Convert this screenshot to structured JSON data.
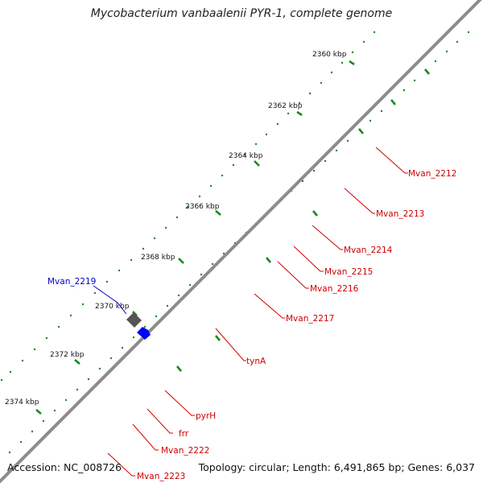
{
  "title": "Mycobacterium vanbaalenii PYR-1, complete genome",
  "footer": {
    "accession_label": "Accession:",
    "accession": "NC_008726",
    "topology_label": "Topology:",
    "topology": "circular",
    "length_label": "Length:",
    "length": "6,491,865 bp",
    "genes_label": "Genes:",
    "genes": "6,037"
  },
  "ticks": [
    "2360 kbp",
    "2362 kbp",
    "2364 kbp",
    "2366 kbp",
    "2368 kbp",
    "2370 kbp",
    "2372 kbp",
    "2374 kbp"
  ],
  "gene_labels": [
    {
      "text": "Mvan_2212",
      "color": "#cc0000"
    },
    {
      "text": "Mvan_2213",
      "color": "#cc0000"
    },
    {
      "text": "Mvan_2214",
      "color": "#cc0000"
    },
    {
      "text": "Mvan_2215",
      "color": "#cc0000"
    },
    {
      "text": "Mvan_2216",
      "color": "#cc0000"
    },
    {
      "text": "Mvan_2217",
      "color": "#cc0000"
    },
    {
      "text": "tynA",
      "color": "#cc0000"
    },
    {
      "text": "pyrH",
      "color": "#cc0000"
    },
    {
      "text": "frr",
      "color": "#cc0000"
    },
    {
      "text": "Mvan_2222",
      "color": "#cc0000"
    },
    {
      "text": "Mvan_2223",
      "color": "#cc0000"
    },
    {
      "text": "Mvan_2219",
      "color": "#0000cc"
    }
  ],
  "colors": {
    "cds": "#ff0000",
    "pink": "#f08080",
    "olive": "#6b8e23",
    "magenta": "#ff1493",
    "spring_green": "#00e676",
    "steel_blue": "#4682b4",
    "navy": "#000080",
    "sky": "#1ec8ff",
    "slate": "#7b68ee",
    "silver": "#c0c0c0",
    "gray": "#555555",
    "blue": "#0000ff",
    "backbone": "#8c8c8c",
    "gc_dots": "#1a8a1a"
  }
}
